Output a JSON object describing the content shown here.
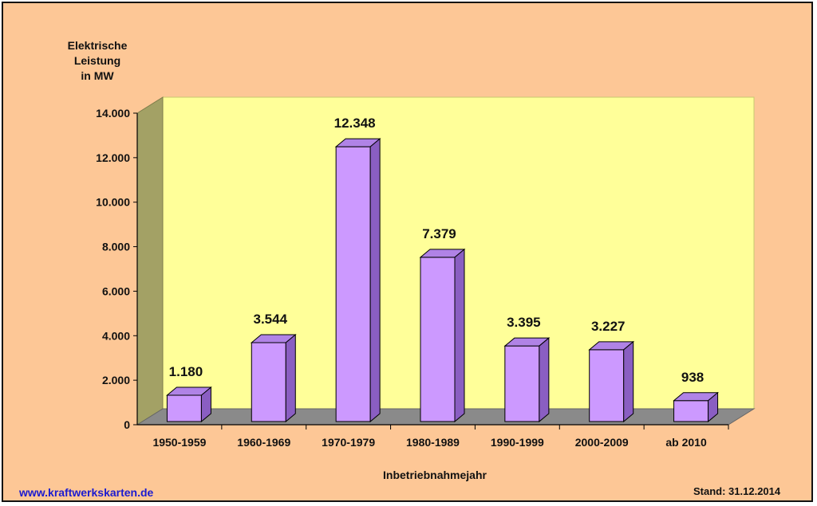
{
  "chart_data": {
    "type": "bar",
    "ylabel_lines": [
      "Elektrische",
      "Leistung",
      "in MW"
    ],
    "xlabel": "Inbetriebnahmejahr",
    "categories": [
      "1950-1959",
      "1960-1969",
      "1970-1979",
      "1980-1989",
      "1990-1999",
      "2000-2009",
      "ab 2010"
    ],
    "values": [
      1180,
      3544,
      12348,
      7379,
      3395,
      3227,
      938
    ],
    "data_labels": [
      "1.180",
      "3.544",
      "12.348",
      "7.379",
      "3.395",
      "3.227",
      "938"
    ],
    "ylim": [
      0,
      14000
    ],
    "yticks": [
      0,
      2000,
      4000,
      6000,
      8000,
      10000,
      12000,
      14000
    ],
    "ytick_labels": [
      "0",
      "2.000",
      "4.000",
      "6.000",
      "8.000",
      "10.000",
      "12.000",
      "14.000"
    ],
    "grid": false,
    "legend": "none",
    "style": "3d"
  },
  "footer": {
    "website": "www.kraftwerkskarten.de",
    "stand": "Stand: 31.12.2014"
  },
  "colors": {
    "background": "#fdc796",
    "back_wall": "#ffff99",
    "side_wall": "#a3a165",
    "floor": "#8a8a8a",
    "bar_front": "#cc99ff",
    "bar_top": "#b083e6",
    "bar_side": "#8a5ec2",
    "website_text": "#1b1bd0"
  }
}
